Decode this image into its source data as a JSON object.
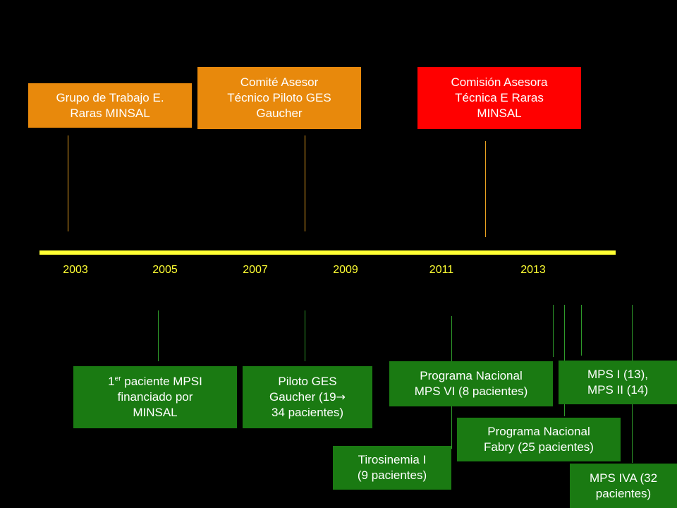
{
  "colors": {
    "background": "#000000",
    "axis": "#ffff33",
    "orange_box": "#e8890c",
    "red_box": "#ff0000",
    "green_box": "#1a7a12"
  },
  "years": [
    "2003",
    "2005",
    "2007",
    "2009",
    "2011",
    "2013"
  ],
  "top_boxes": {
    "grupo": {
      "line1": "Grupo de Trabajo E.",
      "line2": "Raras MINSAL"
    },
    "comite": {
      "line1": "Comité Asesor",
      "line2": "Técnico Piloto GES",
      "line3": "Gaucher"
    },
    "comision": {
      "line1": "Comisión Asesora",
      "line2": "Técnica E Raras",
      "line3": "MINSAL"
    }
  },
  "bottom_boxes": {
    "primer_paciente": {
      "ordinal": "1",
      "ordinal_sup": "er",
      "line1_rest": " paciente MPSI",
      "line2": "financiado por",
      "line3": "MINSAL"
    },
    "piloto_gaucher": {
      "line1": "Piloto GES",
      "line2": "Gaucher (19",
      "arrow": "→",
      "line3": "34 pacientes)"
    },
    "mps_vi": {
      "line1": "Programa Nacional",
      "line2": "MPS VI (8 pacientes)"
    },
    "tirosinemia": {
      "line1": "Tirosinemia I",
      "line2": "(9 pacientes)"
    },
    "fabry": {
      "line1": "Programa Nacional",
      "line2": "Fabry (25 pacientes)"
    },
    "mps_i_ii": {
      "line1": "MPS I (13),",
      "line2": "MPS II (14)"
    },
    "mps_iva": {
      "line1": "MPS IVA (32",
      "line2": "pacientes)"
    }
  }
}
